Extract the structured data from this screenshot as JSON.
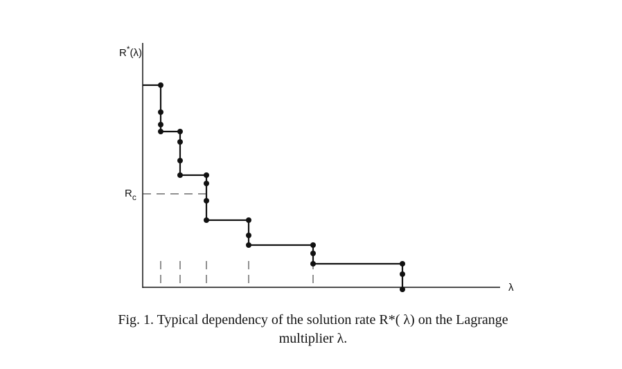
{
  "figure": {
    "y_axis_label": {
      "symbol": "R",
      "superscript": "*",
      "argument": "(λ)"
    },
    "x_axis_label": "λ",
    "threshold_label": {
      "symbol": "R",
      "subscript": "c"
    },
    "caption": [
      "Fig. 1. Typical dependency of the solution rate R*( λ) on the Lagrange",
      "multiplier λ."
    ]
  }
}
